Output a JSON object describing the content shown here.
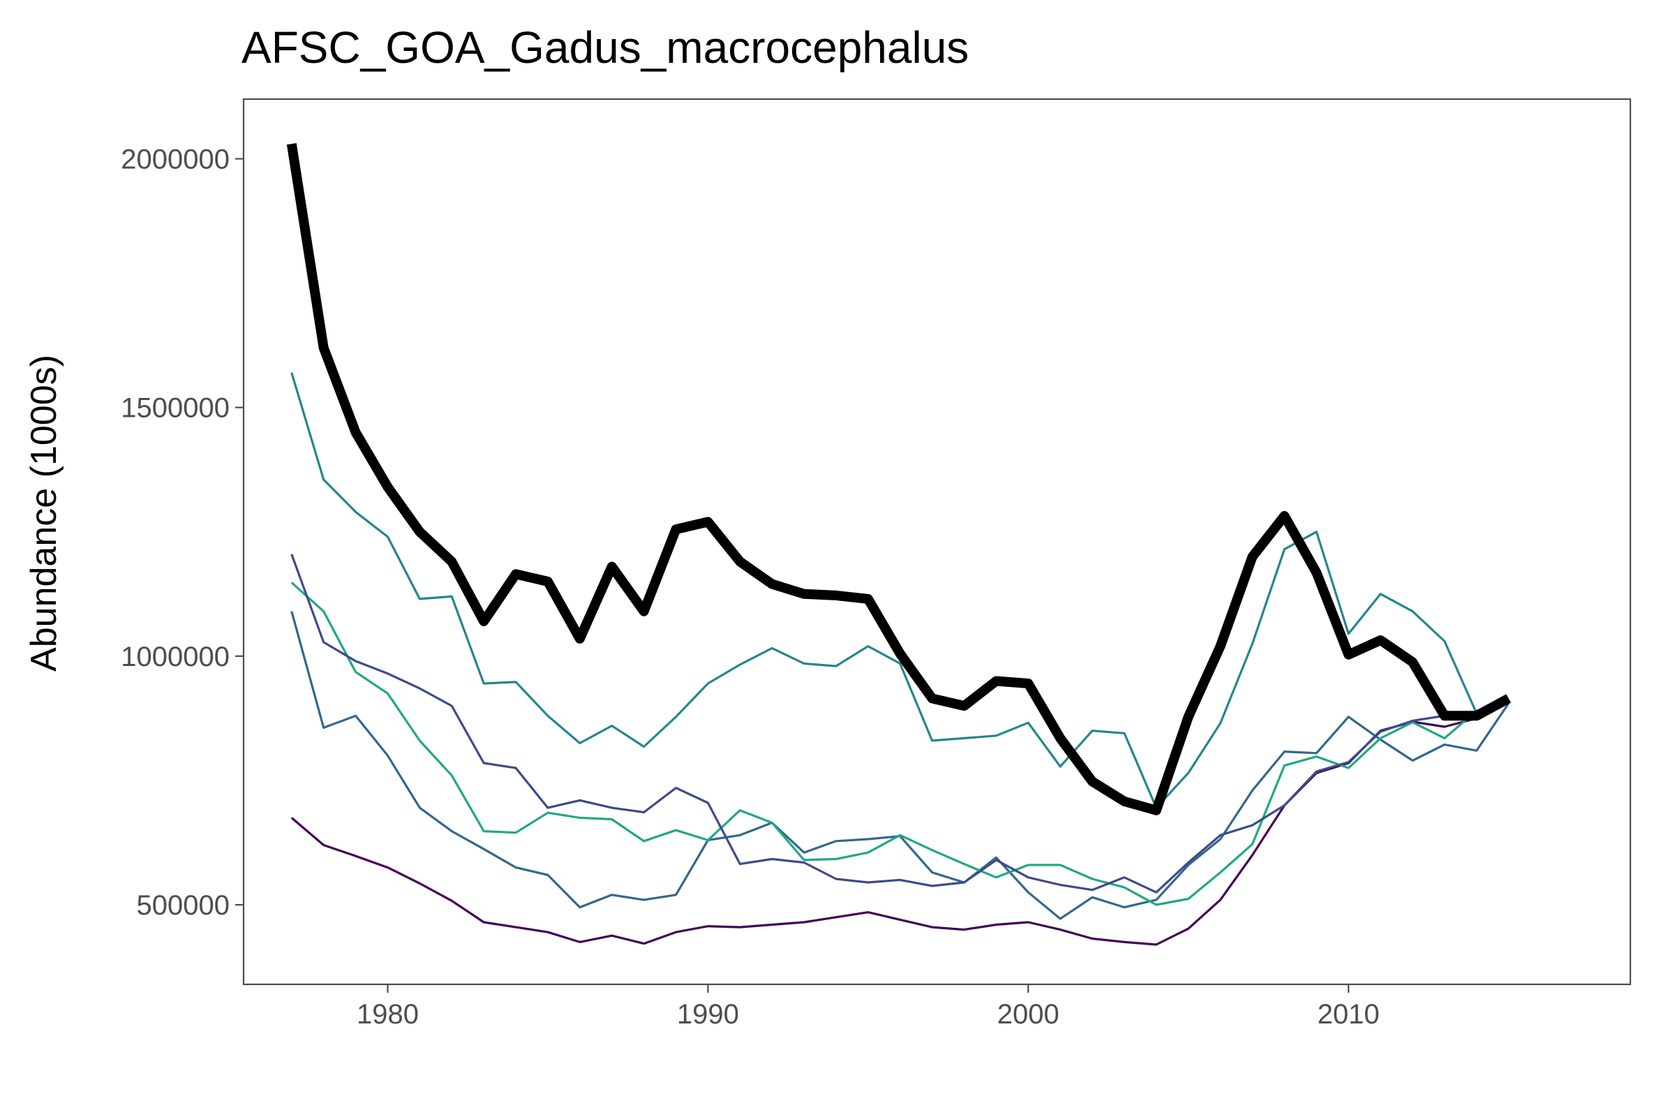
{
  "chart_data": {
    "type": "line",
    "title": "AFSC_GOA_Gadus_macrocephalus",
    "xlabel": "",
    "ylabel": "Abundance (1000s)",
    "xlim": [
      1975.5,
      2018.8
    ],
    "ylim": [
      340000,
      2120000
    ],
    "x_ticks": [
      1980,
      1990,
      2000,
      2010
    ],
    "y_ticks": [
      500000,
      1000000,
      1500000,
      2000000
    ],
    "x_tick_labels": [
      "1980",
      "1990",
      "2000",
      "2010"
    ],
    "y_tick_labels": [
      "500000",
      "1000000",
      "1500000",
      "2000000"
    ],
    "grid": false,
    "legend": "none",
    "x": [
      1977,
      1978,
      1979,
      1980,
      1981,
      1982,
      1983,
      1984,
      1985,
      1986,
      1987,
      1988,
      1989,
      1990,
      1991,
      1992,
      1993,
      1994,
      1995,
      1996,
      1997,
      1998,
      1999,
      2000,
      2001,
      2002,
      2003,
      2004,
      2005,
      2006,
      2007,
      2008,
      2009,
      2010,
      2011,
      2012,
      2013,
      2014,
      2015
    ],
    "series": [
      {
        "color": "#000000",
        "width": 14,
        "values": [
          2030000,
          1620000,
          1450000,
          1340000,
          1250000,
          1190000,
          1070000,
          1165000,
          1150000,
          1035000,
          1180000,
          1090000,
          1255000,
          1270000,
          1190000,
          1145000,
          1125000,
          1122000,
          1115000,
          1005000,
          915000,
          900000,
          950000,
          945000,
          835000,
          748000,
          708000,
          690000,
          878000,
          1020000,
          1200000,
          1282000,
          1168000,
          1003000,
          1032000,
          988000,
          880000,
          880000,
          915000
        ]
      },
      {
        "color": "#24868e",
        "width": 3.2,
        "values": [
          1570000,
          1355000,
          1290000,
          1240000,
          1115000,
          1120000,
          945000,
          948000,
          880000,
          825000,
          860000,
          818000,
          878000,
          945000,
          983000,
          1016000,
          985000,
          980000,
          1020000,
          985000,
          830000,
          835000,
          840000,
          866000,
          778000,
          850000,
          845000,
          695000,
          765000,
          865000,
          1025000,
          1215000,
          1250000,
          1045000,
          1125000,
          1090000,
          1030000,
          885000,
          912000
        ]
      },
      {
        "color": "#3e4a89",
        "width": 3.2,
        "values": [
          1205000,
          1028000,
          990000,
          965000,
          935000,
          900000,
          785000,
          775000,
          695000,
          710000,
          695000,
          686000,
          735000,
          705000,
          582000,
          592000,
          585000,
          552000,
          545000,
          550000,
          538000,
          545000,
          590000,
          555000,
          540000,
          530000,
          555000,
          525000,
          585000,
          640000,
          660000,
          700000,
          768000,
          787000,
          848000,
          870000,
          880000,
          878000,
          912000
        ]
      },
      {
        "color": "#22a784",
        "width": 3.2,
        "values": [
          1148000,
          1090000,
          968000,
          925000,
          830000,
          760000,
          648000,
          645000,
          685000,
          675000,
          672000,
          628000,
          650000,
          630000,
          690000,
          665000,
          590000,
          592000,
          605000,
          640000,
          610000,
          582000,
          555000,
          580000,
          580000,
          552000,
          535000,
          500000,
          512000,
          565000,
          622000,
          780000,
          798000,
          775000,
          835000,
          867000,
          835000,
          890000,
          912000
        ]
      },
      {
        "color": "#31688e",
        "width": 3.2,
        "values": [
          1090000,
          856000,
          880000,
          800000,
          695000,
          648000,
          612000,
          575000,
          560000,
          495000,
          520000,
          510000,
          520000,
          630000,
          640000,
          665000,
          605000,
          628000,
          632000,
          638000,
          565000,
          545000,
          595000,
          525000,
          472000,
          515000,
          495000,
          510000,
          580000,
          632000,
          730000,
          808000,
          805000,
          878000,
          832000,
          790000,
          822000,
          810000,
          905000
        ]
      },
      {
        "color": "#440154",
        "width": 3.2,
        "values": [
          675000,
          620000,
          598000,
          575000,
          543000,
          508000,
          465000,
          455000,
          445000,
          425000,
          438000,
          422000,
          445000,
          457000,
          455000,
          460000,
          465000,
          475000,
          485000,
          470000,
          455000,
          450000,
          460000,
          465000,
          450000,
          432000,
          425000,
          420000,
          452000,
          510000,
          600000,
          700000,
          765000,
          785000,
          850000,
          868000,
          858000,
          875000,
          912000
        ]
      }
    ]
  }
}
